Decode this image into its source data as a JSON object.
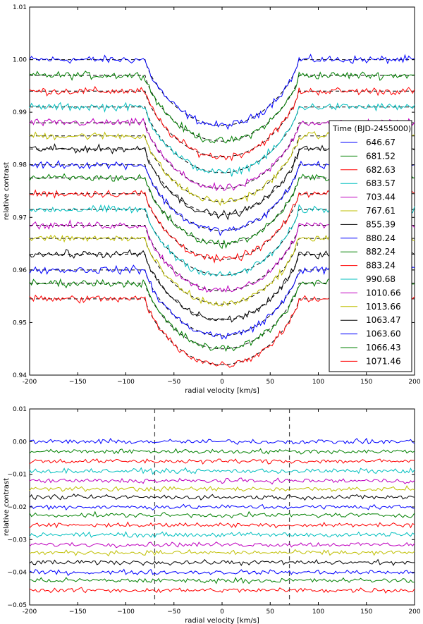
{
  "chart_data": [
    {
      "type": "line",
      "panel": "top",
      "xlabel": "radial velocity [km/s]",
      "ylabel": "relative contrast",
      "xlim": [
        -200,
        200
      ],
      "ylim": [
        0.94,
        1.01
      ],
      "xticks": [
        -200,
        -150,
        -100,
        -50,
        0,
        50,
        100,
        150,
        200
      ],
      "xtick_labels": [
        "-200",
        "−150",
        "−100",
        "−50",
        "0",
        "50",
        "100",
        "150",
        "200"
      ],
      "yticks": [
        0.94,
        0.95,
        0.96,
        0.97,
        0.98,
        0.99,
        1.0,
        1.01
      ],
      "ytick_labels": [
        "0.94",
        "0.95",
        "0.96",
        "0.97",
        "0.98",
        "0.99",
        "1.00",
        "1.01"
      ],
      "grid": false,
      "legend": {
        "title": "Time (BJD-2455000)",
        "placement": "right"
      },
      "profile": {
        "continuum_half_width_kms": 80,
        "line_depth": 0.0125,
        "noise_amplitude": 0.0006
      },
      "series": [
        {
          "name": "646.67",
          "color": "#0000ff",
          "continuum": 1.0
        },
        {
          "name": "681.52",
          "color": "#008000",
          "continuum": 0.997
        },
        {
          "name": "682.63",
          "color": "#ff0000",
          "continuum": 0.994
        },
        {
          "name": "683.57",
          "color": "#00bfbf",
          "continuum": 0.991
        },
        {
          "name": "703.44",
          "color": "#bf00bf",
          "continuum": 0.988
        },
        {
          "name": "767.61",
          "color": "#bfbf00",
          "continuum": 0.9855
        },
        {
          "name": "855.39",
          "color": "#000000",
          "continuum": 0.983
        },
        {
          "name": "880.24",
          "color": "#0000ff",
          "continuum": 0.98
        },
        {
          "name": "882.24",
          "color": "#008000",
          "continuum": 0.9775
        },
        {
          "name": "883.24",
          "color": "#ff0000",
          "continuum": 0.9745
        },
        {
          "name": "990.68",
          "color": "#00bfbf",
          "continuum": 0.9715
        },
        {
          "name": "1010.66",
          "color": "#bf00bf",
          "continuum": 0.9685
        },
        {
          "name": "1013.66",
          "color": "#bfbf00",
          "continuum": 0.966
        },
        {
          "name": "1063.47",
          "color": "#000000",
          "continuum": 0.963
        },
        {
          "name": "1063.60",
          "color": "#0000ff",
          "continuum": 0.96
        },
        {
          "name": "1066.43",
          "color": "#008000",
          "continuum": 0.9575
        },
        {
          "name": "1071.46",
          "color": "#ff0000",
          "continuum": 0.9545
        }
      ]
    },
    {
      "type": "line",
      "panel": "bottom",
      "xlabel": "radial velocity [km/s]",
      "ylabel": "relative contrast",
      "xlim": [
        -200,
        200
      ],
      "ylim": [
        -0.05,
        0.01
      ],
      "xticks": [
        -200,
        -150,
        -100,
        -50,
        0,
        50,
        100,
        150,
        200
      ],
      "xtick_labels": [
        "-200",
        "−150",
        "−100",
        "−50",
        "0",
        "50",
        "100",
        "150",
        "200"
      ],
      "yticks": [
        -0.05,
        -0.04,
        -0.03,
        -0.02,
        -0.01,
        0.0,
        0.01
      ],
      "ytick_labels": [
        "−0.05",
        "−0.04",
        "−0.03",
        "−0.02",
        "−0.01",
        "0.00",
        "0.01"
      ],
      "grid": false,
      "vertical_reference_lines_kms": [
        -70,
        70
      ],
      "series_colors": [
        "#0000ff",
        "#008000",
        "#ff0000",
        "#00bfbf",
        "#bf00bf",
        "#bfbf00",
        "#000000",
        "#0000ff",
        "#008000",
        "#ff0000",
        "#00bfbf",
        "#bf00bf",
        "#bfbf00",
        "#000000",
        "#0000ff",
        "#008000",
        "#ff0000"
      ],
      "series_offsets": [
        0.0,
        -0.003,
        -0.006,
        -0.009,
        -0.012,
        -0.0145,
        -0.017,
        -0.02,
        -0.0225,
        -0.0255,
        -0.0285,
        -0.0315,
        -0.034,
        -0.037,
        -0.04,
        -0.0425,
        -0.0455
      ],
      "noise_amplitude": 0.0006
    }
  ]
}
